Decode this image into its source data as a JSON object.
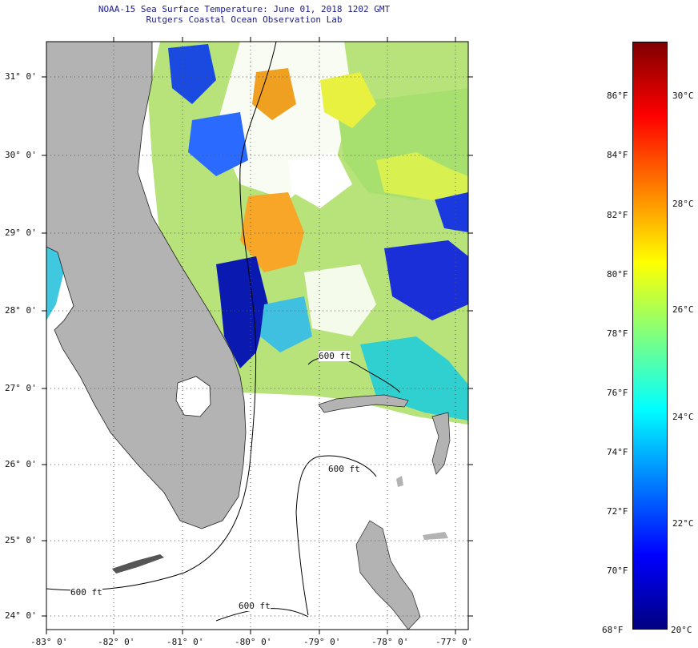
{
  "title": {
    "line1": "NOAA-15 Sea Surface Temperature:  June 01, 2018 1202 GMT",
    "line2": "Rutgers Coastal Ocean Observation Lab"
  },
  "map": {
    "lat_labels": [
      "31° 0'",
      "30° 0'",
      "29° 0'",
      "28° 0'",
      "27° 0'",
      "26° 0'",
      "25° 0'",
      "24° 0'"
    ],
    "lon_labels": [
      "-83° 0'",
      "-82° 0'",
      "-81° 0'",
      "-80° 0'",
      "-79° 0'",
      "-78° 0'",
      "-77° 0'"
    ],
    "contour_labels": [
      "600 ft",
      "600 ft",
      "600 ft",
      "600 ft"
    ],
    "colors": {
      "land": "#b3b3b3",
      "cloud": "#ffffff",
      "grid": "#555555"
    }
  },
  "colorbar": {
    "fahrenheit": [
      "86°F",
      "84°F",
      "82°F",
      "80°F",
      "78°F",
      "76°F",
      "74°F",
      "72°F",
      "70°F",
      "68°F"
    ],
    "celsius": [
      "30°C",
      "28°C",
      "26°C",
      "24°C",
      "22°C",
      "20°C"
    ],
    "gradient": [
      "#00007f",
      "#0000ff",
      "#007fff",
      "#00ffff",
      "#7fff7f",
      "#ffff00",
      "#ff7f00",
      "#ff0000",
      "#7f0000"
    ]
  }
}
